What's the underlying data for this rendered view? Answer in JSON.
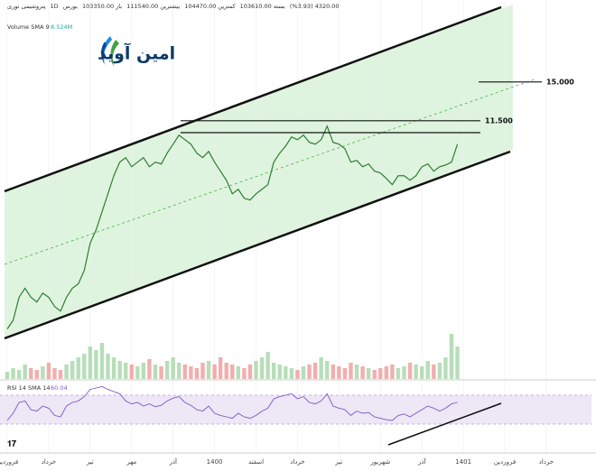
{
  "chart_data": {
    "type": "line",
    "logo": "امین آوید",
    "header": [
      "پتروشیمی نوری",
      "1D",
      "بورس",
      "باز 103350.00",
      "بیشترین 111540.00",
      "کمترین 104470.00",
      "بسته 103610.00",
      "4320.00 (%3.93)"
    ],
    "log_scale": true,
    "ylim": [
      1960,
      26300
    ],
    "color": "#2e7d32",
    "categories": [
      "فروردین",
      null,
      null,
      null,
      null,
      null,
      null,
      "خرداد",
      null,
      null,
      null,
      null,
      null,
      null,
      "تیر",
      null,
      null,
      null,
      null,
      null,
      null,
      "مهر",
      null,
      null,
      null,
      null,
      null,
      null,
      "آذر",
      null,
      null,
      null,
      null,
      null,
      null,
      "1400",
      null,
      null,
      null,
      null,
      null,
      null,
      "اسفند",
      null,
      null,
      null,
      null,
      null,
      null,
      "خرداد",
      null,
      null,
      null,
      null,
      null,
      null,
      "تیر",
      null,
      null,
      null,
      null,
      null,
      null,
      "شهریور",
      null,
      null,
      null,
      null,
      null,
      null,
      "آذر",
      null,
      null,
      null,
      null,
      null,
      null,
      "1401",
      null,
      null,
      null,
      null,
      null,
      null,
      "فروردین",
      null,
      null,
      null,
      null,
      null,
      null,
      "خرداد"
    ],
    "values": [
      2760,
      2930,
      3430,
      3650,
      3430,
      3320,
      3530,
      3430,
      3220,
      3120,
      3430,
      3650,
      3760,
      4120,
      4970,
      5440,
      6160,
      6970,
      7890,
      8660,
      8930,
      8390,
      8660,
      8930,
      8390,
      8660,
      8550,
      9210,
      9790,
      10420,
      10100,
      9790,
      9210,
      8930,
      9320,
      8660,
      8140,
      7650,
      6970,
      7190,
      6760,
      6680,
      6970,
      7190,
      7420,
      8660,
      9210,
      9670,
      10290,
      10100,
      10420,
      9920,
      9790,
      10100,
      11080,
      9920,
      9790,
      9500,
      8660,
      8760,
      8390,
      8550,
      8140,
      8040,
      7740,
      7420,
      7890,
      7890,
      7650,
      7890,
      8390,
      8550,
      8140,
      8390,
      8490,
      8660,
      9790,
      null,
      null,
      null,
      null,
      null,
      null,
      null,
      null,
      null,
      null,
      null,
      null,
      null,
      null,
      null
    ],
    "levels": [
      {
        "value": 11500,
        "label": "11.500"
      },
      {
        "value": 15000,
        "label": "15.000"
      },
      {
        "value": 10600
      }
    ],
    "volume": {
      "title": "Volume SMA 9",
      "value_text": "8.524M",
      "ylim": [
        0,
        40
      ],
      "values": [
        4,
        6,
        5,
        8,
        6,
        5,
        7,
        9,
        6,
        5,
        8,
        10,
        12,
        14,
        18,
        16,
        20,
        14,
        12,
        10,
        9,
        8,
        7,
        9,
        11,
        8,
        7,
        10,
        12,
        9,
        8,
        7,
        6,
        9,
        10,
        8,
        12,
        9,
        8,
        7,
        6,
        8,
        10,
        12,
        15,
        9,
        8,
        7,
        6,
        5,
        7,
        8,
        9,
        12,
        10,
        8,
        7,
        6,
        9,
        8,
        7,
        6,
        5,
        6,
        7,
        8,
        6,
        7,
        9,
        8,
        7,
        10,
        8,
        9,
        12,
        25,
        18,
        null,
        null,
        null,
        null,
        null,
        null,
        null,
        null,
        null,
        null,
        null,
        null,
        null,
        null,
        null
      ]
    },
    "rsi": {
      "title": "RSI 14 SMA 14",
      "value_text": "60.04",
      "ylim": [
        0,
        100
      ],
      "bands": [
        30,
        70
      ],
      "color": "#7e57c2",
      "values": [
        35,
        45,
        60,
        62,
        50,
        48,
        55,
        52,
        42,
        40,
        55,
        60,
        62,
        68,
        78,
        80,
        82,
        78,
        75,
        72,
        62,
        58,
        60,
        55,
        58,
        54,
        56,
        62,
        66,
        68,
        60,
        56,
        50,
        48,
        55,
        45,
        42,
        40,
        38,
        45,
        40,
        38,
        42,
        48,
        52,
        65,
        68,
        70,
        72,
        65,
        68,
        60,
        58,
        62,
        72,
        55,
        52,
        50,
        42,
        48,
        45,
        46,
        40,
        38,
        36,
        35,
        42,
        44,
        40,
        45,
        50,
        55,
        52,
        48,
        52,
        58,
        60,
        null,
        null,
        null,
        null,
        null,
        null,
        null,
        null,
        null,
        null,
        null,
        null,
        null,
        null,
        null
      ]
    }
  }
}
